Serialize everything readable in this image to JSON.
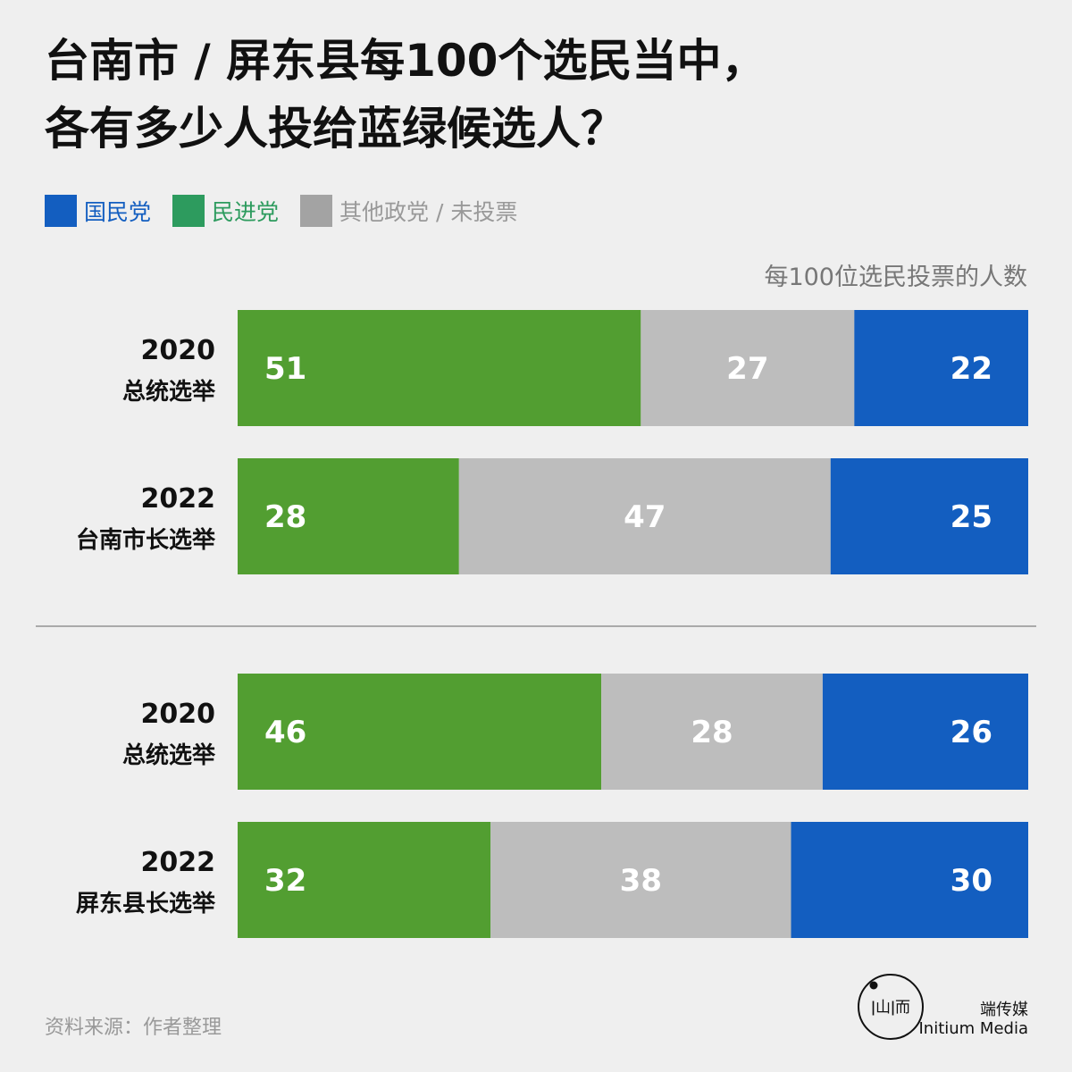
{
  "title": {
    "line1": "台南市 / 屏东县每100个选民当中，",
    "line2": "各有多少人投给蓝绿候选人？"
  },
  "legend": [
    {
      "label": "国民党",
      "color": "#135ec0",
      "text_color": "#135ec0"
    },
    {
      "label": "民进党",
      "color": "#2d9b5e",
      "text_color": "#2d9b5e"
    },
    {
      "label": "其他政党 / 未投票",
      "color": "#a3a3a3",
      "text_color": "#999999"
    }
  ],
  "unit_label": "每100位选民投票的人数",
  "source": "资料来源：作者整理",
  "brand": {
    "zh": "端传媒",
    "en": "Initium Media",
    "logo_text": "ǀ山ǀ而"
  },
  "colors": {
    "dpp_bar": "#529e31",
    "other_bar": "#bdbdbd",
    "kmt_bar": "#135ec0",
    "divider": "#aaaaaa"
  },
  "chart_data": {
    "type": "bar",
    "orientation": "horizontal",
    "stacked": true,
    "xlim": [
      0,
      100
    ],
    "categories": [
      [
        "2020",
        "总统选举"
      ],
      [
        "2022",
        "台南市长选举"
      ],
      [
        "2020",
        "总统选举"
      ],
      [
        "2022",
        "屏东县长选举"
      ]
    ],
    "groups": [
      {
        "rows": [
          0,
          1
        ]
      },
      {
        "rows": [
          2,
          3
        ]
      }
    ],
    "series": [
      {
        "name": "民进党",
        "values": [
          51,
          28,
          46,
          32
        ]
      },
      {
        "name": "其他政党 / 未投票",
        "values": [
          27,
          47,
          28,
          38
        ]
      },
      {
        "name": "国民党",
        "values": [
          22,
          25,
          26,
          30
        ]
      }
    ]
  }
}
